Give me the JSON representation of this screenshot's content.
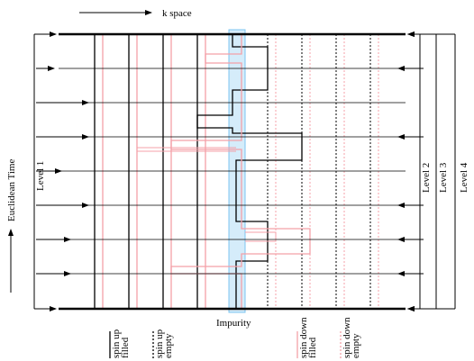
{
  "diagram": {
    "k_space": "k space",
    "time_axis": "Euclidean Time",
    "levels": [
      "Level 1",
      "Level 2",
      "Level 3",
      "Level 4"
    ],
    "impurity": "Impurity",
    "legend": [
      {
        "lines": [
          "spin up",
          "filled"
        ]
      },
      {
        "lines": [
          "spin up",
          "empty"
        ]
      },
      {
        "lines": [
          "spin down",
          "filled"
        ]
      },
      {
        "lines": [
          "spin down",
          "empty"
        ]
      }
    ]
  }
}
